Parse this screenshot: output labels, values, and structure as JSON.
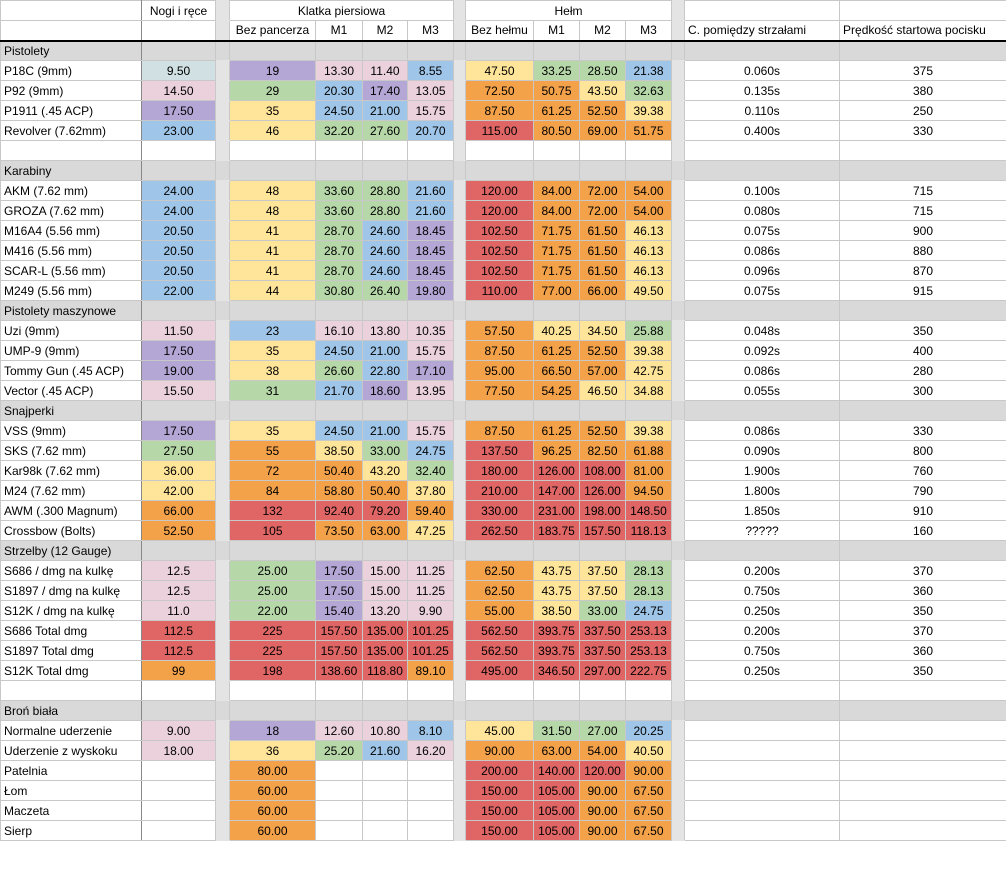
{
  "header": {
    "nogi": "Nogi i ręce",
    "klatka": "Klatka piersiowa",
    "helm": "Hełm",
    "sub": [
      "Bez pancerza",
      "M1",
      "M2",
      "M3",
      "Bez hełmu",
      "M1",
      "M2",
      "M3",
      "C. pomiędzy strzałami",
      "Prędkość startowa pocisku"
    ]
  },
  "rows": [
    {
      "section": "Pistolety"
    },
    {
      "cells": [
        "P18C (9mm)",
        "9.50",
        "19",
        "13.30",
        "11.40",
        "8.55",
        "47.50",
        "33.25",
        "28.50",
        "21.38",
        "0.060s",
        "375"
      ],
      "fills": [
        "#d0e0e3",
        "#b4a7d6",
        "#ead1dc",
        "#ead1dc",
        "#9fc5e8",
        "#ffe599",
        "#b6d7a8",
        "#b6d7a8",
        "#9fc5e8"
      ]
    },
    {
      "cells": [
        "P92 (9mm)",
        "14.50",
        "29",
        "20.30",
        "17.40",
        "13.05",
        "72.50",
        "50.75",
        "43.50",
        "32.63",
        "0.135s",
        "380"
      ],
      "fills": [
        "#ead1dc",
        "#b6d7a8",
        "#9fc5e8",
        "#b4a7d6",
        "#ead1dc",
        "#f4a24a",
        "#f4a24a",
        "#ffe599",
        "#b6d7a8"
      ]
    },
    {
      "cells": [
        "P1911 (.45 ACP)",
        "17.50",
        "35",
        "24.50",
        "21.00",
        "15.75",
        "87.50",
        "61.25",
        "52.50",
        "39.38",
        "0.110s",
        "250"
      ],
      "fills": [
        "#b4a7d6",
        "#ffe599",
        "#9fc5e8",
        "#9fc5e8",
        "#ead1dc",
        "#f4a24a",
        "#f4a24a",
        "#f4a24a",
        "#ffe599"
      ]
    },
    {
      "cells": [
        "Revolver (7.62mm)",
        "23.00",
        "46",
        "32.20",
        "27.60",
        "20.70",
        "115.00",
        "80.50",
        "69.00",
        "51.75",
        "0.400s",
        "330"
      ],
      "fills": [
        "#9fc5e8",
        "#ffe599",
        "#b6d7a8",
        "#b6d7a8",
        "#9fc5e8",
        "#e06666",
        "#f4a24a",
        "#f4a24a",
        "#f4a24a"
      ]
    },
    null,
    {
      "section": "Karabiny"
    },
    {
      "cells": [
        "AKM (7.62 mm)",
        "24.00",
        "48",
        "33.60",
        "28.80",
        "21.60",
        "120.00",
        "84.00",
        "72.00",
        "54.00",
        "0.100s",
        "715"
      ],
      "fills": [
        "#9fc5e8",
        "#ffe599",
        "#b6d7a8",
        "#b6d7a8",
        "#9fc5e8",
        "#e06666",
        "#f4a24a",
        "#f4a24a",
        "#f4a24a"
      ]
    },
    {
      "cells": [
        "GROZA (7.62 mm)",
        "24.00",
        "48",
        "33.60",
        "28.80",
        "21.60",
        "120.00",
        "84.00",
        "72.00",
        "54.00",
        "0.080s",
        "715"
      ],
      "fills": [
        "#9fc5e8",
        "#ffe599",
        "#b6d7a8",
        "#b6d7a8",
        "#9fc5e8",
        "#e06666",
        "#f4a24a",
        "#f4a24a",
        "#f4a24a"
      ]
    },
    {
      "cells": [
        "M16A4 (5.56 mm)",
        "20.50",
        "41",
        "28.70",
        "24.60",
        "18.45",
        "102.50",
        "71.75",
        "61.50",
        "46.13",
        "0.075s",
        "900"
      ],
      "fills": [
        "#9fc5e8",
        "#ffe599",
        "#b6d7a8",
        "#9fc5e8",
        "#b4a7d6",
        "#e06666",
        "#f4a24a",
        "#f4a24a",
        "#ffe599"
      ]
    },
    {
      "cells": [
        "M416 (5.56 mm)",
        "20.50",
        "41",
        "28.70",
        "24.60",
        "18.45",
        "102.50",
        "71.75",
        "61.50",
        "46.13",
        "0.086s",
        "880"
      ],
      "fills": [
        "#9fc5e8",
        "#ffe599",
        "#b6d7a8",
        "#9fc5e8",
        "#b4a7d6",
        "#e06666",
        "#f4a24a",
        "#f4a24a",
        "#ffe599"
      ]
    },
    {
      "cells": [
        "SCAR-L (5.56 mm)",
        "20.50",
        "41",
        "28.70",
        "24.60",
        "18.45",
        "102.50",
        "71.75",
        "61.50",
        "46.13",
        "0.096s",
        "870"
      ],
      "fills": [
        "#9fc5e8",
        "#ffe599",
        "#b6d7a8",
        "#9fc5e8",
        "#b4a7d6",
        "#e06666",
        "#f4a24a",
        "#f4a24a",
        "#ffe599"
      ]
    },
    {
      "cells": [
        "M249 (5.56 mm)",
        "22.00",
        "44",
        "30.80",
        "26.40",
        "19.80",
        "110.00",
        "77.00",
        "66.00",
        "49.50",
        "0.075s",
        "915"
      ],
      "fills": [
        "#9fc5e8",
        "#ffe599",
        "#b6d7a8",
        "#b6d7a8",
        "#b4a7d6",
        "#e06666",
        "#f4a24a",
        "#f4a24a",
        "#ffe599"
      ]
    },
    {
      "section": "Pistolety maszynowe"
    },
    {
      "cells": [
        "Uzi (9mm)",
        "11.50",
        "23",
        "16.10",
        "13.80",
        "10.35",
        "57.50",
        "40.25",
        "34.50",
        "25.88",
        "0.048s",
        "350"
      ],
      "fills": [
        "#ead1dc",
        "#9fc5e8",
        "#ead1dc",
        "#ead1dc",
        "#ead1dc",
        "#f4a24a",
        "#ffe599",
        "#ffe599",
        "#b6d7a8"
      ]
    },
    {
      "cells": [
        "UMP-9 (9mm)",
        "17.50",
        "35",
        "24.50",
        "21.00",
        "15.75",
        "87.50",
        "61.25",
        "52.50",
        "39.38",
        "0.092s",
        "400"
      ],
      "fills": [
        "#b4a7d6",
        "#ffe599",
        "#9fc5e8",
        "#9fc5e8",
        "#ead1dc",
        "#f4a24a",
        "#f4a24a",
        "#f4a24a",
        "#ffe599"
      ]
    },
    {
      "cells": [
        "Tommy Gun (.45 ACP)",
        "19.00",
        "38",
        "26.60",
        "22.80",
        "17.10",
        "95.00",
        "66.50",
        "57.00",
        "42.75",
        "0.086s",
        "280"
      ],
      "fills": [
        "#b4a7d6",
        "#ffe599",
        "#b6d7a8",
        "#9fc5e8",
        "#b4a7d6",
        "#f4a24a",
        "#f4a24a",
        "#f4a24a",
        "#ffe599"
      ]
    },
    {
      "cells": [
        "Vector (.45 ACP)",
        "15.50",
        "31",
        "21.70",
        "18.60",
        "13.95",
        "77.50",
        "54.25",
        "46.50",
        "34.88",
        "0.055s",
        "300"
      ],
      "fills": [
        "#ead1dc",
        "#b6d7a8",
        "#9fc5e8",
        "#b4a7d6",
        "#ead1dc",
        "#f4a24a",
        "#f4a24a",
        "#ffe599",
        "#ffe599"
      ]
    },
    {
      "section": "Snajperki"
    },
    {
      "cells": [
        "VSS (9mm)",
        "17.50",
        "35",
        "24.50",
        "21.00",
        "15.75",
        "87.50",
        "61.25",
        "52.50",
        "39.38",
        "0.086s",
        "330"
      ],
      "fills": [
        "#b4a7d6",
        "#ffe599",
        "#9fc5e8",
        "#9fc5e8",
        "#ead1dc",
        "#f4a24a",
        "#f4a24a",
        "#f4a24a",
        "#ffe599"
      ]
    },
    {
      "cells": [
        "SKS (7.62 mm)",
        "27.50",
        "55",
        "38.50",
        "33.00",
        "24.75",
        "137.50",
        "96.25",
        "82.50",
        "61.88",
        "0.090s",
        "800"
      ],
      "fills": [
        "#b6d7a8",
        "#f4a24a",
        "#ffe599",
        "#b6d7a8",
        "#9fc5e8",
        "#e06666",
        "#f4a24a",
        "#f4a24a",
        "#f4a24a"
      ]
    },
    {
      "cells": [
        "Kar98k (7.62 mm)",
        "36.00",
        "72",
        "50.40",
        "43.20",
        "32.40",
        "180.00",
        "126.00",
        "108.00",
        "81.00",
        "1.900s",
        "760"
      ],
      "fills": [
        "#ffe599",
        "#f4a24a",
        "#f4a24a",
        "#ffe599",
        "#b6d7a8",
        "#e06666",
        "#e06666",
        "#e06666",
        "#f4a24a"
      ]
    },
    {
      "cells": [
        "M24 (7.62 mm)",
        "42.00",
        "84",
        "58.80",
        "50.40",
        "37.80",
        "210.00",
        "147.00",
        "126.00",
        "94.50",
        "1.800s",
        "790"
      ],
      "fills": [
        "#ffe599",
        "#f4a24a",
        "#f4a24a",
        "#f4a24a",
        "#ffe599",
        "#e06666",
        "#e06666",
        "#e06666",
        "#f4a24a"
      ]
    },
    {
      "cells": [
        "AWM (.300 Magnum)",
        "66.00",
        "132",
        "92.40",
        "79.20",
        "59.40",
        "330.00",
        "231.00",
        "198.00",
        "148.50",
        "1.850s",
        "910"
      ],
      "fills": [
        "#f4a24a",
        "#e06666",
        "#e06666",
        "#e06666",
        "#f4a24a",
        "#e06666",
        "#e06666",
        "#e06666",
        "#e06666"
      ]
    },
    {
      "cells": [
        "Crossbow (Bolts)",
        "52.50",
        "105",
        "73.50",
        "63.00",
        "47.25",
        "262.50",
        "183.75",
        "157.50",
        "118.13",
        "?????",
        "160"
      ],
      "fills": [
        "#f4a24a",
        "#e06666",
        "#f4a24a",
        "#f4a24a",
        "#ffe599",
        "#e06666",
        "#e06666",
        "#e06666",
        "#e06666"
      ]
    },
    {
      "section": "Strzelby (12 Gauge)"
    },
    {
      "cells": [
        "S686 / dmg na kulkę",
        "12.5",
        "25.00",
        "17.50",
        "15.00",
        "11.25",
        "62.50",
        "43.75",
        "37.50",
        "28.13",
        "0.200s",
        "370"
      ],
      "fills": [
        "#ead1dc",
        "#b6d7a8",
        "#b4a7d6",
        "#ead1dc",
        "#ead1dc",
        "#f4a24a",
        "#ffe599",
        "#ffe599",
        "#b6d7a8"
      ]
    },
    {
      "cells": [
        "S1897 / dmg na kulkę",
        "12.5",
        "25.00",
        "17.50",
        "15.00",
        "11.25",
        "62.50",
        "43.75",
        "37.50",
        "28.13",
        "0.750s",
        "360"
      ],
      "fills": [
        "#ead1dc",
        "#b6d7a8",
        "#b4a7d6",
        "#ead1dc",
        "#ead1dc",
        "#f4a24a",
        "#ffe599",
        "#ffe599",
        "#b6d7a8"
      ]
    },
    {
      "cells": [
        "S12K / dmg na kulkę",
        "11.0",
        "22.00",
        "15.40",
        "13.20",
        "9.90",
        "55.00",
        "38.50",
        "33.00",
        "24.75",
        "0.250s",
        "350"
      ],
      "fills": [
        "#ead1dc",
        "#b6d7a8",
        "#b4a7d6",
        "#ead1dc",
        "#ead1dc",
        "#f4a24a",
        "#ffe599",
        "#b6d7a8",
        "#9fc5e8"
      ]
    },
    {
      "cells": [
        "S686 Total dmg",
        "112.5",
        "225",
        "157.50",
        "135.00",
        "101.25",
        "562.50",
        "393.75",
        "337.50",
        "253.13",
        "0.200s",
        "370"
      ],
      "fills": [
        "#e06666",
        "#e06666",
        "#e06666",
        "#e06666",
        "#e06666",
        "#e06666",
        "#e06666",
        "#e06666",
        "#e06666"
      ]
    },
    {
      "cells": [
        "S1897 Total dmg",
        "112.5",
        "225",
        "157.50",
        "135.00",
        "101.25",
        "562.50",
        "393.75",
        "337.50",
        "253.13",
        "0.750s",
        "360"
      ],
      "fills": [
        "#e06666",
        "#e06666",
        "#e06666",
        "#e06666",
        "#e06666",
        "#e06666",
        "#e06666",
        "#e06666",
        "#e06666"
      ]
    },
    {
      "cells": [
        "S12K Total dmg",
        "99",
        "198",
        "138.60",
        "118.80",
        "89.10",
        "495.00",
        "346.50",
        "297.00",
        "222.75",
        "0.250s",
        "350"
      ],
      "fills": [
        "#f4a24a",
        "#e06666",
        "#e06666",
        "#e06666",
        "#f4a24a",
        "#e06666",
        "#e06666",
        "#e06666",
        "#e06666"
      ]
    },
    null,
    {
      "section": "Broń biała"
    },
    {
      "cells": [
        "Normalne uderzenie",
        "9.00",
        "18",
        "12.60",
        "10.80",
        "8.10",
        "45.00",
        "31.50",
        "27.00",
        "20.25",
        null,
        null
      ],
      "fills": [
        "#ead1dc",
        "#b4a7d6",
        "#ead1dc",
        "#ead1dc",
        "#9fc5e8",
        "#ffe599",
        "#b6d7a8",
        "#b6d7a8",
        "#9fc5e8"
      ]
    },
    {
      "cells": [
        "Uderzenie z wyskoku",
        "18.00",
        "36",
        "25.20",
        "21.60",
        "16.20",
        "90.00",
        "63.00",
        "54.00",
        "40.50",
        null,
        null
      ],
      "fills": [
        "#ead1dc",
        "#ffe599",
        "#b6d7a8",
        "#9fc5e8",
        "#ead1dc",
        "#f4a24a",
        "#f4a24a",
        "#f4a24a",
        "#ffe599"
      ]
    },
    {
      "cells": [
        "Patelnia",
        null,
        "80.00",
        null,
        null,
        null,
        "200.00",
        "140.00",
        "120.00",
        "90.00",
        null,
        null
      ],
      "fills": [
        null,
        "#f4a24a",
        null,
        null,
        null,
        "#e06666",
        "#e06666",
        "#e06666",
        "#f4a24a"
      ]
    },
    {
      "cells": [
        "Łom",
        null,
        "60.00",
        null,
        null,
        null,
        "150.00",
        "105.00",
        "90.00",
        "67.50",
        null,
        null
      ],
      "fills": [
        null,
        "#f4a24a",
        null,
        null,
        null,
        "#e06666",
        "#e06666",
        "#f4a24a",
        "#f4a24a"
      ]
    },
    {
      "cells": [
        "Maczeta",
        null,
        "60.00",
        null,
        null,
        null,
        "150.00",
        "105.00",
        "90.00",
        "67.50",
        null,
        null
      ],
      "fills": [
        null,
        "#f4a24a",
        null,
        null,
        null,
        "#e06666",
        "#e06666",
        "#f4a24a",
        "#f4a24a"
      ]
    },
    {
      "cells": [
        "Sierp",
        null,
        "60.00",
        null,
        null,
        null,
        "150.00",
        "105.00",
        "90.00",
        "67.50",
        null,
        null
      ],
      "fills": [
        null,
        "#f4a24a",
        null,
        null,
        null,
        "#e06666",
        "#e06666",
        "#f4a24a",
        "#f4a24a"
      ]
    }
  ]
}
